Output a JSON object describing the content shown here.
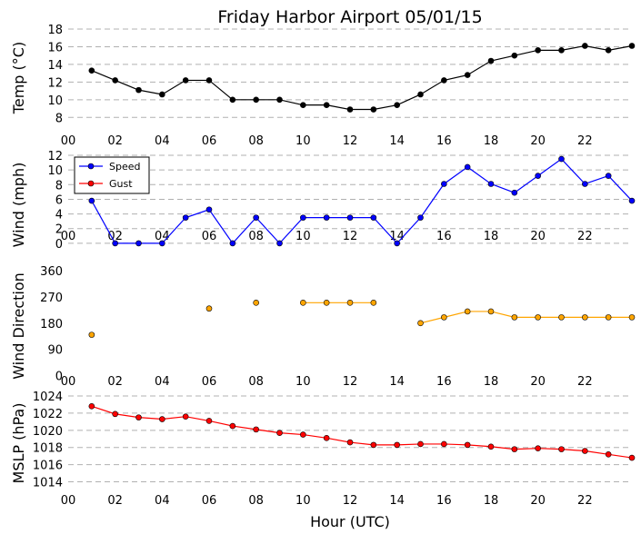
{
  "chart_data": [
    {
      "id": "temp",
      "type": "line",
      "title": "Friday Harbor Airport 05/01/15",
      "ylabel": "Temp ($^\\circ$C)",
      "ylabel_display": "Temp (°C)",
      "ylim": [
        7,
        18
      ],
      "yticks": [
        8,
        10,
        12,
        14,
        16,
        18
      ],
      "xlim": [
        0,
        24
      ],
      "xticks": [
        "00",
        "02",
        "04",
        "06",
        "08",
        "10",
        "12",
        "14",
        "16",
        "18",
        "20",
        "22"
      ],
      "grid": true,
      "series": [
        {
          "color": "#000000",
          "marker_color": "#000000",
          "line": true,
          "x": [
            1,
            2,
            3,
            4,
            5,
            6,
            7,
            8,
            9,
            10,
            11,
            12,
            13,
            14,
            15,
            16,
            17,
            18,
            19,
            20,
            21,
            22,
            23,
            24
          ],
          "y": [
            13.3,
            12.2,
            11.1,
            10.6,
            12.2,
            12.2,
            10.0,
            10.0,
            10.0,
            9.4,
            9.4,
            8.9,
            8.9,
            9.4,
            10.6,
            12.2,
            12.8,
            14.4,
            15.0,
            15.6,
            15.6,
            16.1,
            15.6,
            16.1
          ]
        }
      ]
    },
    {
      "id": "wind",
      "type": "line",
      "ylabel": "Wind (mph)",
      "ylim": [
        -1.5,
        12
      ],
      "yticks": [
        0,
        2,
        4,
        6,
        8,
        10,
        12
      ],
      "xlim": [
        0,
        24
      ],
      "xticks": [
        "00",
        "02",
        "04",
        "06",
        "08",
        "10",
        "12",
        "14",
        "16",
        "18",
        "20",
        "22"
      ],
      "grid": true,
      "legend": {
        "position": "top-left",
        "entries": [
          {
            "label": "Speed",
            "color": "#0000ff"
          },
          {
            "label": "Gust",
            "color": "#ff0000"
          }
        ]
      },
      "series": [
        {
          "name": "Speed",
          "color": "#0000ff",
          "marker_color": "#0000ff",
          "line": true,
          "x": [
            1,
            2,
            3,
            4,
            5,
            6,
            7,
            8,
            9,
            10,
            11,
            12,
            13,
            14,
            15,
            16,
            17,
            18,
            19,
            20,
            21,
            22,
            23,
            24
          ],
          "y": [
            5.8,
            0,
            0,
            0,
            3.5,
            4.6,
            0,
            3.5,
            0,
            3.5,
            3.5,
            3.5,
            3.5,
            0,
            3.5,
            8.1,
            10.4,
            8.1,
            6.9,
            9.2,
            11.5,
            8.1,
            9.2,
            5.8
          ]
        },
        {
          "name": "Gust",
          "color": "#ff0000",
          "marker_color": "#ff0000",
          "line": true,
          "x": [],
          "y": []
        }
      ]
    },
    {
      "id": "wdir",
      "type": "line",
      "ylabel": "Wind Direction",
      "ylim": [
        -20,
        360
      ],
      "yticks": [
        0,
        90,
        180,
        270,
        360
      ],
      "xlim": [
        0,
        24
      ],
      "xticks": [
        "00",
        "02",
        "04",
        "06",
        "08",
        "10",
        "12",
        "14",
        "16",
        "18",
        "20",
        "22"
      ],
      "grid": false,
      "series": [
        {
          "color": "#ffa500",
          "marker_color": "#ffa500",
          "line": true,
          "x": [
            1,
            6,
            8,
            10,
            11,
            12,
            13,
            15,
            16,
            17,
            18,
            19,
            20,
            21,
            22,
            23,
            24
          ],
          "y": [
            140,
            230,
            250,
            250,
            250,
            250,
            250,
            180,
            200,
            220,
            220,
            200,
            200,
            200,
            200,
            200,
            200
          ],
          "segments": [
            [
              1
            ],
            [
              6
            ],
            [
              8
            ],
            [
              10,
              11,
              12,
              13
            ],
            [
              15,
              16,
              17,
              18,
              19,
              20,
              21,
              22,
              23,
              24
            ]
          ]
        }
      ]
    },
    {
      "id": "mslp",
      "type": "line",
      "ylabel": "MSLP (hPa)",
      "xlabel": "Hour (UTC)",
      "ylim": [
        1013,
        1024
      ],
      "yticks": [
        1014,
        1016,
        1018,
        1020,
        1022,
        1024
      ],
      "xlim": [
        0,
        24
      ],
      "xticks": [
        "00",
        "02",
        "04",
        "06",
        "08",
        "10",
        "12",
        "14",
        "16",
        "18",
        "20",
        "22"
      ],
      "grid": true,
      "series": [
        {
          "color": "#ff0000",
          "marker_color": "#ff0000",
          "line": true,
          "x": [
            1,
            2,
            3,
            4,
            5,
            6,
            7,
            8,
            9,
            10,
            11,
            12,
            13,
            14,
            15,
            16,
            17,
            18,
            19,
            20,
            21,
            22,
            23,
            24
          ],
          "y": [
            1022.8,
            1021.9,
            1021.5,
            1021.3,
            1021.6,
            1021.1,
            1020.5,
            1020.1,
            1019.7,
            1019.5,
            1019.1,
            1018.6,
            1018.3,
            1018.3,
            1018.4,
            1018.4,
            1018.3,
            1018.1,
            1017.8,
            1017.9,
            1017.8,
            1017.6,
            1017.2,
            1016.8
          ]
        }
      ]
    }
  ]
}
